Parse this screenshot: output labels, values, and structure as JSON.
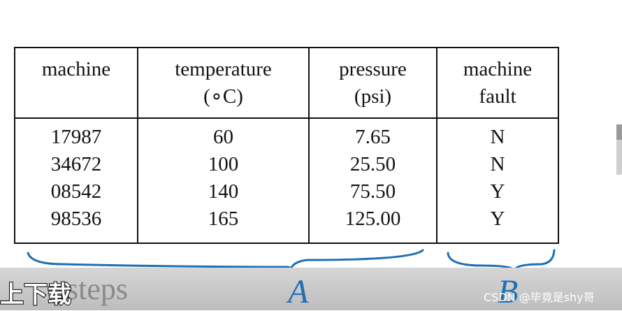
{
  "table": {
    "header": [
      [
        "machine"
      ],
      [
        "temperature",
        "(∘C)"
      ],
      [
        "pressure",
        "(psi)"
      ],
      [
        "machine",
        "fault"
      ]
    ],
    "rows": [
      [
        "17987",
        "60",
        "7.65",
        "N"
      ],
      [
        "34672",
        "100",
        "25.50",
        "N"
      ],
      [
        "08542",
        "140",
        "75.50",
        "Y"
      ],
      [
        "98536",
        "165",
        "125.00",
        "Y"
      ]
    ]
  },
  "annotations": [
    "A",
    "B"
  ],
  "overlay": {
    "subtitle": "上下载",
    "faded_text": "steps",
    "watermark": "CSDN @毕竟是shy哥"
  }
}
